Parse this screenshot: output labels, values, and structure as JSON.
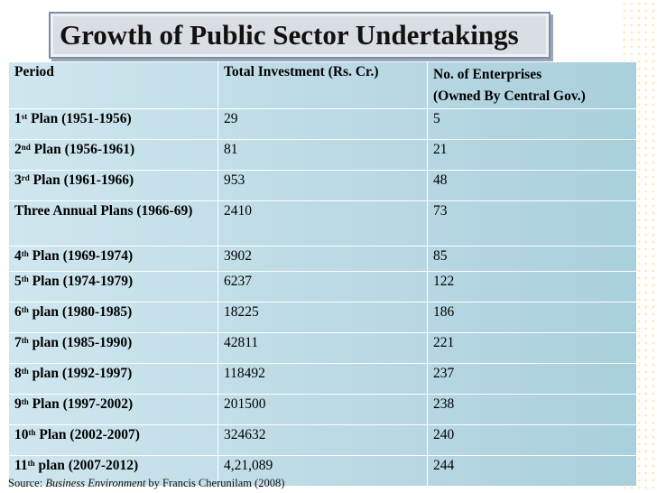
{
  "title": "Growth of Public Sector Undertakings",
  "headers": {
    "period": "Period",
    "investment": "Total Investment (Rs. Cr.)",
    "enterprises_line1": "No. of Enterprises",
    "enterprises_line2": "(Owned By Central Gov.)"
  },
  "rows": [
    {
      "num": "1",
      "sup": "st",
      "label": " Plan (1951-1956)",
      "investment": "29",
      "enterprises": "5"
    },
    {
      "num": "2",
      "sup": "nd",
      "label": " Plan (1956-1961)",
      "investment": "81",
      "enterprises": "21"
    },
    {
      "num": "3",
      "sup": "rd",
      "label": " Plan (1961-1966)",
      "investment": "953",
      "enterprises": "48"
    },
    {
      "num": "",
      "sup": "",
      "label": "Three Annual Plans (1966-69)",
      "investment": "2410",
      "enterprises": "73"
    },
    {
      "num": "4",
      "sup": "th",
      "label": " Plan (1969-1974)",
      "investment": "3902",
      "enterprises": "85"
    },
    {
      "num": "5",
      "sup": "th",
      "label": " Plan (1974-1979)",
      "investment": "6237",
      "enterprises": "122"
    },
    {
      "num": "6",
      "sup": "th",
      "label": " plan (1980-1985)",
      "investment": "18225",
      "enterprises": "186"
    },
    {
      "num": "7",
      "sup": "th",
      "label": " plan (1985-1990)",
      "investment": "42811",
      "enterprises": "221"
    },
    {
      "num": "8",
      "sup": "th",
      "label": " plan (1992-1997)",
      "investment": "118492",
      "enterprises": "237"
    },
    {
      "num": "9",
      "sup": "th",
      "label": " Plan (1997-2002)",
      "investment": "201500",
      "enterprises": "238"
    },
    {
      "num": "10",
      "sup": "th",
      "label": " Plan (2002-2007)",
      "investment": "324632",
      "enterprises": "240"
    },
    {
      "num": "11",
      "sup": "th",
      "label": " plan (2007-2012)",
      "investment": "4,21,089",
      "enterprises": "244"
    }
  ],
  "source": {
    "prefix": "Source: ",
    "book": "Business Environment",
    "suffix": " by Francis Cherunilam (2008)"
  }
}
